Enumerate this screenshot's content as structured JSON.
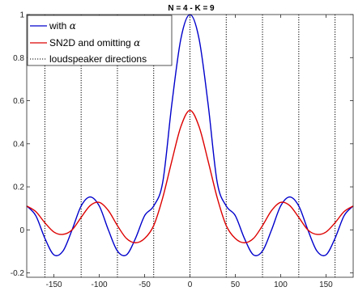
{
  "chart_data": {
    "type": "line",
    "title": "N = 4 - K = 9",
    "xlabel": "",
    "ylabel": "",
    "xlim": [
      -180,
      180
    ],
    "ylim": [
      -0.22,
      1.0
    ],
    "x_ticks": [
      -150,
      -100,
      -50,
      0,
      50,
      100,
      150
    ],
    "x_tick_labels": [
      "-150",
      "-100",
      "-50",
      "0",
      "50",
      "100",
      "150"
    ],
    "y_ticks": [
      -0.2,
      0,
      0.2,
      0.4,
      0.6,
      0.8,
      1
    ],
    "y_tick_labels": [
      "-0.2",
      "0",
      "0.2",
      "0.4",
      "0.6",
      "0.8",
      "1"
    ],
    "grid": "off",
    "legend_placement": "top-left",
    "series": [
      {
        "name": "with",
        "symbol": "α",
        "color": "#0000cc",
        "style": "solid",
        "x": [
          -180,
          -170,
          -160,
          -150,
          -140,
          -130,
          -120,
          -110,
          -100,
          -90,
          -80,
          -70,
          -60,
          -50,
          -40,
          -30,
          -20,
          -10,
          0,
          10,
          20,
          30,
          40,
          50,
          60,
          70,
          80,
          90,
          100,
          110,
          120,
          130,
          140,
          150,
          160,
          170,
          180
        ],
        "y": [
          0.111,
          0.066,
          -0.039,
          -0.116,
          -0.098,
          0.0,
          0.111,
          0.153,
          0.111,
          0.0,
          -0.098,
          -0.116,
          -0.039,
          0.066,
          0.111,
          0.222,
          0.584,
          0.888,
          1.0,
          0.888,
          0.584,
          0.222,
          0.111,
          0.066,
          -0.039,
          -0.116,
          -0.098,
          0.0,
          0.111,
          0.153,
          0.111,
          0.0,
          -0.098,
          -0.116,
          -0.039,
          0.066,
          0.111
        ]
      },
      {
        "name": "SN2D and omitting",
        "symbol": "α",
        "color": "#dd0000",
        "style": "solid",
        "x": [
          -180,
          -170,
          -160,
          -150,
          -140,
          -130,
          -120,
          -110,
          -100,
          -90,
          -80,
          -70,
          -60,
          -50,
          -40,
          -30,
          -20,
          -10,
          0,
          10,
          20,
          30,
          40,
          50,
          60,
          70,
          80,
          90,
          100,
          110,
          120,
          130,
          140,
          150,
          160,
          170,
          180
        ],
        "y": [
          0.111,
          0.085,
          0.033,
          -0.01,
          -0.021,
          0.0,
          0.058,
          0.113,
          0.128,
          0.09,
          0.02,
          -0.04,
          -0.06,
          -0.04,
          0.02,
          0.15,
          0.32,
          0.48,
          0.555,
          0.48,
          0.32,
          0.15,
          0.02,
          -0.04,
          -0.06,
          -0.04,
          0.02,
          0.09,
          0.128,
          0.113,
          0.058,
          0.0,
          -0.021,
          -0.01,
          0.033,
          0.085,
          0.111
        ]
      }
    ],
    "vertical_lines": {
      "name": "loudspeaker directions",
      "color": "#000000",
      "style": "dotted",
      "x": [
        -160,
        -120,
        -80,
        -40,
        0,
        40,
        80,
        120,
        160
      ]
    }
  }
}
